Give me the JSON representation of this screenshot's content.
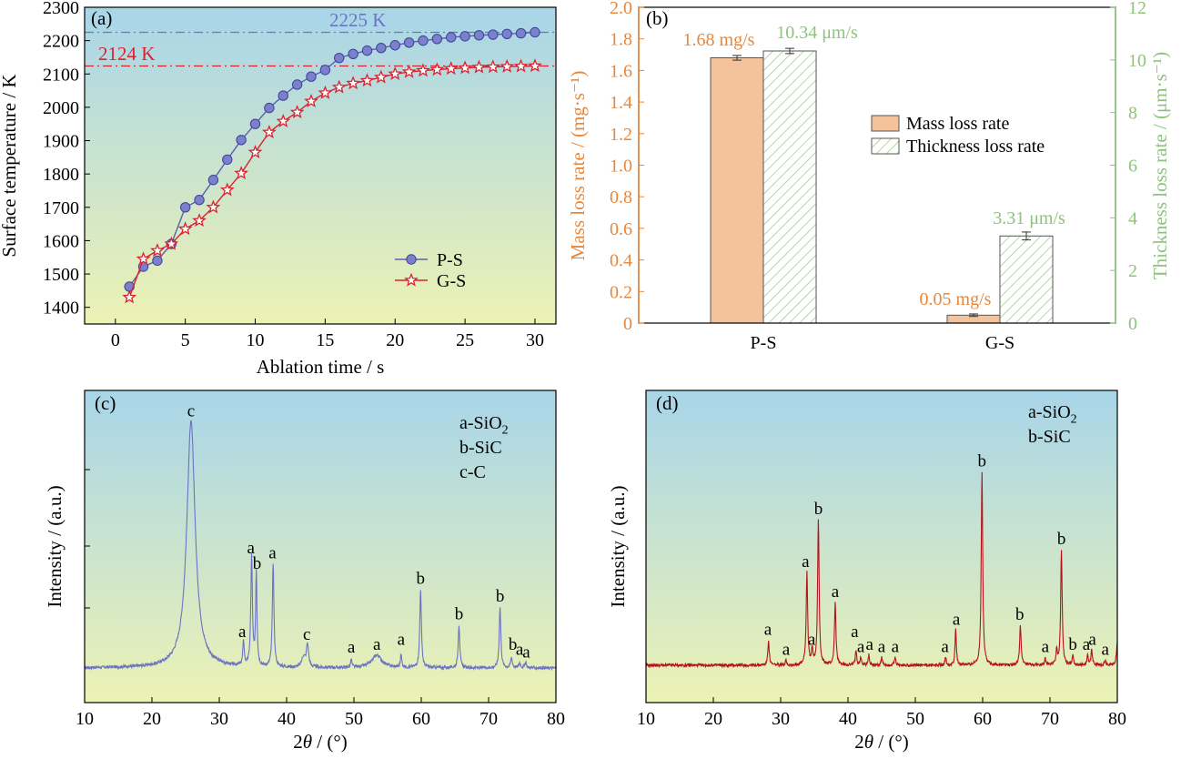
{
  "chart_data": [
    {
      "panel": "(a)",
      "type": "line",
      "xlabel": "Ablation time / s",
      "ylabel": "Surface temperature / K",
      "xlim": [
        -2.2,
        31.5
      ],
      "ylim": [
        1350,
        2300
      ],
      "xticks": [
        0,
        5,
        10,
        15,
        20,
        25,
        30
      ],
      "yticks": [
        1400,
        1500,
        1600,
        1700,
        1800,
        1900,
        2000,
        2100,
        2200,
        2300
      ],
      "grid": false,
      "legend_position": "lower-right",
      "series": [
        {
          "name": "P-S",
          "marker": "circle",
          "color": "#5b5fb3",
          "x": [
            1,
            2,
            3,
            4,
            5,
            6,
            7,
            8,
            9,
            10,
            11,
            12,
            13,
            14,
            15,
            16,
            17,
            18,
            19,
            20,
            21,
            22,
            23,
            24,
            25,
            26,
            27,
            28,
            29,
            30
          ],
          "values": [
            1462,
            1522,
            1540,
            1590,
            1700,
            1722,
            1782,
            1843,
            1902,
            1950,
            1998,
            2035,
            2068,
            2092,
            2112,
            2148,
            2160,
            2170,
            2178,
            2186,
            2194,
            2200,
            2205,
            2210,
            2213,
            2216,
            2218,
            2220,
            2222,
            2225
          ]
        },
        {
          "name": "G-S",
          "marker": "star",
          "color": "#d9232e",
          "x": [
            1,
            2,
            3,
            4,
            5,
            6,
            7,
            8,
            9,
            10,
            11,
            12,
            13,
            14,
            15,
            16,
            17,
            18,
            19,
            20,
            21,
            22,
            23,
            24,
            25,
            26,
            27,
            28,
            29,
            30
          ],
          "values": [
            1430,
            1545,
            1570,
            1590,
            1635,
            1660,
            1700,
            1752,
            1802,
            1865,
            1925,
            1958,
            1985,
            2018,
            2043,
            2060,
            2072,
            2080,
            2090,
            2100,
            2106,
            2110,
            2113,
            2116,
            2118,
            2120,
            2121,
            2122,
            2123,
            2124
          ]
        }
      ],
      "reference_lines": [
        {
          "value": 2225,
          "label": "2225 K",
          "color": "#6a75c8"
        },
        {
          "value": 2124,
          "label": "2124 K",
          "color": "#d9232e"
        }
      ]
    },
    {
      "panel": "(b)",
      "type": "bar",
      "categories": [
        "P-S",
        "G-S"
      ],
      "ylabel": "Mass loss rate / (mg·s⁻¹)",
      "y2label": "Thickness loss rate / (μm·s⁻¹)",
      "ylim": [
        0,
        2.0
      ],
      "y2lim": [
        0,
        12
      ],
      "yticks": [
        0,
        0.2,
        0.4,
        0.6,
        0.8,
        1.0,
        1.2,
        1.4,
        1.6,
        1.8,
        2.0
      ],
      "y2ticks": [
        0,
        2,
        4,
        6,
        8,
        10,
        12
      ],
      "legend_position": "center-right",
      "series": [
        {
          "name": "Mass loss rate",
          "axis": "left",
          "color": "#f4c39b",
          "values": [
            1.68,
            0.05
          ],
          "errors": [
            0.015,
            0.008
          ],
          "labels": [
            "1.68 mg/s",
            "0.05 mg/s"
          ],
          "label_color": "#e8873a"
        },
        {
          "name": "Thickness loss rate",
          "axis": "right",
          "color": "#8cc47a",
          "values": [
            10.34,
            3.31
          ],
          "errors": [
            0.1,
            0.15
          ],
          "labels": [
            "10.34 μm/s",
            "3.31 μm/s"
          ],
          "label_color": "#8cc47a"
        }
      ]
    },
    {
      "panel": "(c)",
      "type": "line",
      "xlabel": "2θ / (°)",
      "ylabel": "Intensity / (a.u.)",
      "xlim": [
        10,
        80
      ],
      "xticks": [
        10,
        20,
        30,
        40,
        50,
        60,
        70,
        80
      ],
      "legend_text": [
        "a-SiO₂",
        "b-SiC",
        "c-C"
      ],
      "line_color": "#6b73c2",
      "peaks": [
        {
          "x": 25.8,
          "h": 0.97,
          "w": 0.75
        },
        {
          "x": 33.6,
          "h": 0.1,
          "w": 0.12
        },
        {
          "x": 34.8,
          "h": 0.43,
          "w": 0.14
        },
        {
          "x": 35.5,
          "h": 0.37,
          "w": 0.12
        },
        {
          "x": 38.0,
          "h": 0.41,
          "w": 0.14
        },
        {
          "x": 42.5,
          "h": 0.04,
          "w": 0.3
        },
        {
          "x": 43.1,
          "h": 0.09,
          "w": 0.2
        },
        {
          "x": 49.6,
          "h": 0.03,
          "w": 0.12
        },
        {
          "x": 53.4,
          "h": 0.05,
          "w": 0.9
        },
        {
          "x": 57.0,
          "h": 0.05,
          "w": 0.12
        },
        {
          "x": 59.9,
          "h": 0.31,
          "w": 0.14
        },
        {
          "x": 65.6,
          "h": 0.17,
          "w": 0.14
        },
        {
          "x": 71.7,
          "h": 0.24,
          "w": 0.14
        },
        {
          "x": 73.4,
          "h": 0.04,
          "w": 0.15
        },
        {
          "x": 74.6,
          "h": 0.02,
          "w": 0.15
        },
        {
          "x": 75.5,
          "h": 0.02,
          "w": 0.15
        }
      ],
      "peak_labels": [
        {
          "x": 25.8,
          "h": 0.97,
          "text": "c"
        },
        {
          "x": 33.4,
          "h": 0.1,
          "text": "a"
        },
        {
          "x": 34.7,
          "h": 0.43,
          "text": "a"
        },
        {
          "x": 35.6,
          "h": 0.37,
          "text": "b"
        },
        {
          "x": 37.9,
          "h": 0.41,
          "text": "a"
        },
        {
          "x": 43.0,
          "h": 0.09,
          "text": "c"
        },
        {
          "x": 49.6,
          "h": 0.04,
          "text": "a"
        },
        {
          "x": 53.4,
          "h": 0.05,
          "text": "a"
        },
        {
          "x": 57.0,
          "h": 0.07,
          "text": "a"
        },
        {
          "x": 59.9,
          "h": 0.31,
          "text": "b"
        },
        {
          "x": 65.6,
          "h": 0.17,
          "text": "b"
        },
        {
          "x": 71.7,
          "h": 0.24,
          "text": "b"
        },
        {
          "x": 73.6,
          "h": 0.05,
          "text": "b"
        },
        {
          "x": 74.6,
          "h": 0.03,
          "text": "a"
        },
        {
          "x": 75.6,
          "h": 0.02,
          "text": "a"
        }
      ]
    },
    {
      "panel": "(d)",
      "type": "line",
      "xlabel": "2θ / (°)",
      "ylabel": "Intensity / (a.u.)",
      "xlim": [
        10,
        80
      ],
      "xticks": [
        10,
        20,
        30,
        40,
        50,
        60,
        70,
        80
      ],
      "legend_text": [
        "a-SiO₂",
        "b-SiC"
      ],
      "line_color": "#b5121b",
      "peaks": [
        {
          "x": 28.2,
          "h": 0.1,
          "w": 0.12
        },
        {
          "x": 30.8,
          "h": 0.02,
          "w": 0.12
        },
        {
          "x": 33.9,
          "h": 0.37,
          "w": 0.13
        },
        {
          "x": 34.7,
          "h": 0.06,
          "w": 0.12
        },
        {
          "x": 35.6,
          "h": 0.58,
          "w": 0.13
        },
        {
          "x": 38.1,
          "h": 0.25,
          "w": 0.13
        },
        {
          "x": 41.2,
          "h": 0.06,
          "w": 0.12
        },
        {
          "x": 41.9,
          "h": 0.03,
          "w": 0.12
        },
        {
          "x": 43.1,
          "h": 0.04,
          "w": 0.12
        },
        {
          "x": 45.0,
          "h": 0.03,
          "w": 0.12
        },
        {
          "x": 47.0,
          "h": 0.03,
          "w": 0.12
        },
        {
          "x": 54.5,
          "h": 0.03,
          "w": 0.12
        },
        {
          "x": 56.0,
          "h": 0.14,
          "w": 0.12
        },
        {
          "x": 59.9,
          "h": 0.77,
          "w": 0.13
        },
        {
          "x": 65.6,
          "h": 0.16,
          "w": 0.13
        },
        {
          "x": 69.3,
          "h": 0.03,
          "w": 0.12
        },
        {
          "x": 71.0,
          "h": 0.06,
          "w": 0.12
        },
        {
          "x": 71.7,
          "h": 0.46,
          "w": 0.13
        },
        {
          "x": 73.4,
          "h": 0.04,
          "w": 0.12
        },
        {
          "x": 75.6,
          "h": 0.04,
          "w": 0.12
        },
        {
          "x": 76.2,
          "h": 0.06,
          "w": 0.12
        },
        {
          "x": 78.2,
          "h": 0.02,
          "w": 0.12
        },
        {
          "x": 80.0,
          "h": 0.09,
          "w": 0.15
        }
      ],
      "peak_labels": [
        {
          "x": 28.1,
          "h": 0.1,
          "text": "a"
        },
        {
          "x": 30.8,
          "h": 0.02,
          "text": "a"
        },
        {
          "x": 33.7,
          "h": 0.37,
          "text": "a"
        },
        {
          "x": 34.6,
          "h": 0.06,
          "text": "a"
        },
        {
          "x": 35.6,
          "h": 0.58,
          "text": "b"
        },
        {
          "x": 38.1,
          "h": 0.25,
          "text": "a"
        },
        {
          "x": 41.0,
          "h": 0.09,
          "text": "a"
        },
        {
          "x": 41.9,
          "h": 0.03,
          "text": "a"
        },
        {
          "x": 43.2,
          "h": 0.04,
          "text": "a"
        },
        {
          "x": 45.0,
          "h": 0.03,
          "text": "a"
        },
        {
          "x": 47.0,
          "h": 0.03,
          "text": "a"
        },
        {
          "x": 54.4,
          "h": 0.03,
          "text": "a"
        },
        {
          "x": 56.1,
          "h": 0.14,
          "text": "a"
        },
        {
          "x": 59.9,
          "h": 0.77,
          "text": "b"
        },
        {
          "x": 65.5,
          "h": 0.16,
          "text": "b"
        },
        {
          "x": 69.3,
          "h": 0.03,
          "text": "a"
        },
        {
          "x": 71.7,
          "h": 0.46,
          "text": "b"
        },
        {
          "x": 73.4,
          "h": 0.04,
          "text": "b"
        },
        {
          "x": 75.4,
          "h": 0.04,
          "text": "a"
        },
        {
          "x": 76.3,
          "h": 0.06,
          "text": "a"
        },
        {
          "x": 78.2,
          "h": 0.02,
          "text": "a"
        }
      ]
    }
  ]
}
